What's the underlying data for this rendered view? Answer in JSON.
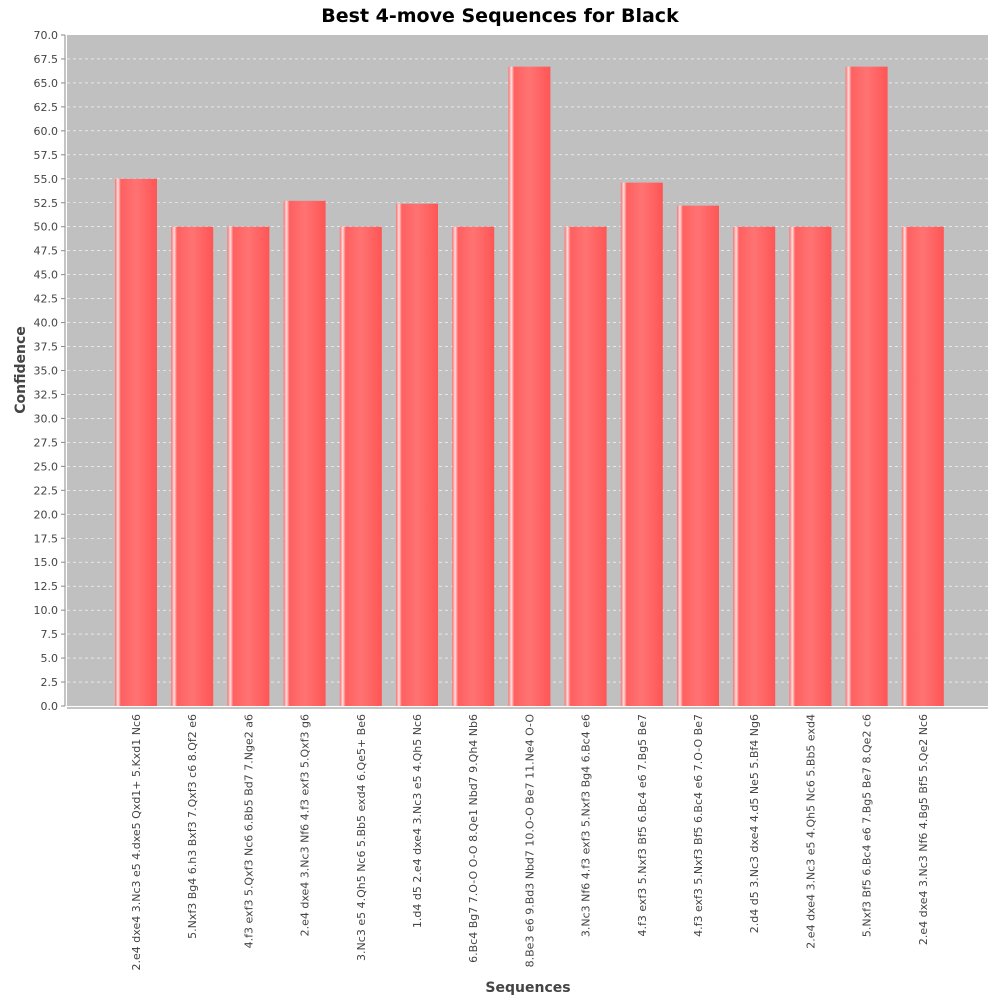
{
  "chart_data": {
    "type": "bar",
    "title": "Best 4-move Sequences for Black",
    "xlabel": "Sequences",
    "ylabel": "Confidence",
    "ylim": [
      0,
      70
    ],
    "ytick_step": 2.5,
    "grid": true,
    "legend": "none",
    "colors": {
      "bar": "#ff5555",
      "bar_highlight": "#ffd6d6",
      "plot_bg": "#c0c0c0",
      "grid": "#ffffff"
    },
    "categories": [
      "2.e4 dxe4 3.Nc3 e5 4.dxe5 Qxd1+ 5.Kxd1 Nc6",
      "5.Nxf3 Bg4 6.h3 Bxf3 7.Qxf3 c6 8.Qf2 e6",
      "4.f3 exf3 5.Qxf3 Nc6 6.Bb5 Bd7 7.Nge2 a6",
      "2.e4 dxe4 3.Nc3 Nf6 4.f3 exf3 5.Qxf3 g6",
      "3.Nc3 e5 4.Qh5 Nc6 5.Bb5 exd4 6.Qe5+ Be6",
      "1.d4 d5 2.e4 dxe4 3.Nc3 e5 4.Qh5 Nc6",
      "6.Bc4 Bg7 7.O-O O-O 8.Qe1 Nbd7 9.Qh4 Nb6",
      "8.Be3 e6 9.Bd3 Nbd7 10.O-O Be7 11.Ne4 O-O",
      "3.Nc3 Nf6 4.f3 exf3 5.Nxf3 Bg4 6.Bc4 e6",
      "4.f3 exf3 5.Nxf3 Bf5 6.Bc4 e6 7.Bg5 Be7",
      "4.f3 exf3 5.Nxf3 Bf5 6.Bc4 e6 7.O-O Be7",
      "2.d4 d5 3.Nc3 dxe4 4.d5 Ne5 5.Bf4 Ng6",
      "2.e4 dxe4 3.Nc3 e5 4.Qh5 Nc6 5.Bb5 exd4",
      "5.Nxf3 Bf5 6.Bc4 e6 7.Bg5 Be7 8.Qe2 c6",
      "2.e4 dxe4 3.Nc3 Nf6 4.Bg5 Bf5 5.Qe2 Nc6"
    ],
    "values": [
      55.0,
      50.0,
      50.0,
      52.7,
      50.0,
      52.4,
      50.0,
      66.7,
      50.0,
      54.6,
      52.2,
      50.0,
      50.0,
      66.7,
      50.0
    ]
  }
}
